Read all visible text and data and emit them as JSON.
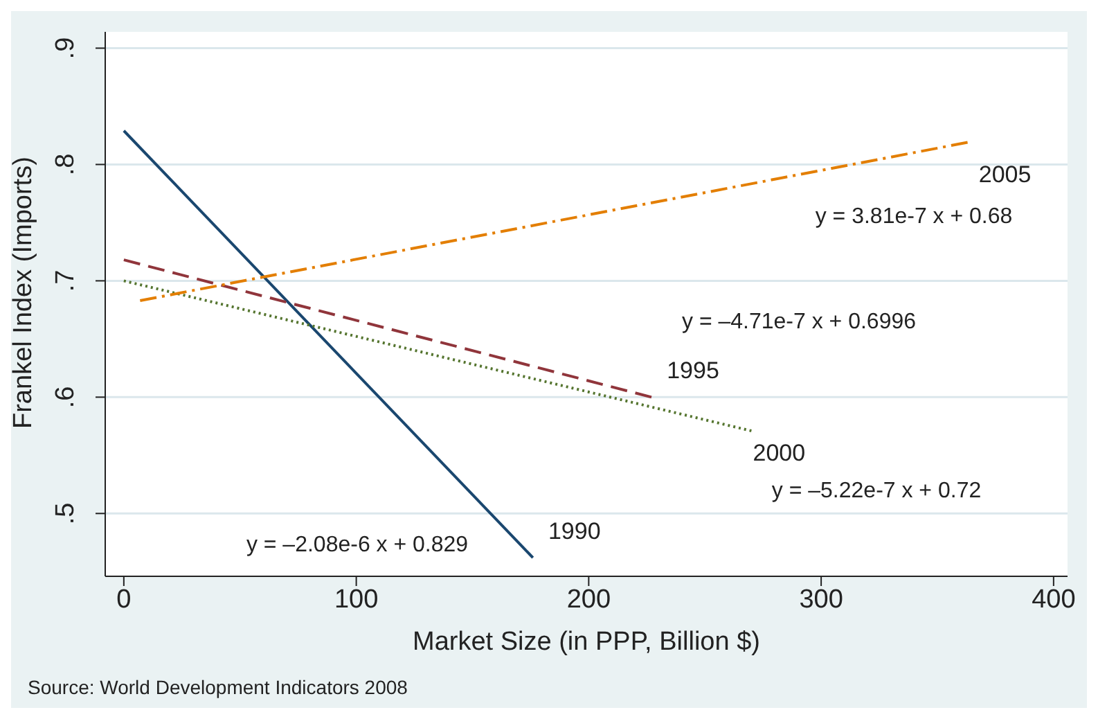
{
  "chart_data": {
    "type": "line",
    "xlabel": "Market Size (in PPP, Billion $)",
    "ylabel": "Frankel Index (Imports)",
    "xlim": [
      -8,
      406
    ],
    "xticks": [
      0,
      100,
      200,
      300,
      400
    ],
    "ylim": [
      0.446,
      0.914
    ],
    "yticks": [
      {
        "value": 0.5,
        "label": ".5"
      },
      {
        "value": 0.6,
        "label": ".6"
      },
      {
        "value": 0.7,
        "label": ".7"
      },
      {
        "value": 0.8,
        "label": ".8"
      },
      {
        "value": 0.9,
        "label": ".9"
      }
    ],
    "grid": "y",
    "legend": false,
    "marker": "none",
    "series": [
      {
        "name": "1990",
        "color": "#1a476f",
        "line_style": "solid",
        "x": [
          0,
          176
        ],
        "values": [
          0.829,
          0.462
        ]
      },
      {
        "name": "1995",
        "color": "#90353b",
        "line_style": "dashed",
        "x": [
          0,
          227
        ],
        "values": [
          0.718,
          0.6
        ]
      },
      {
        "name": "2000",
        "color": "#55752f",
        "line_style": "dotted",
        "x": [
          0,
          270
        ],
        "values": [
          0.7,
          0.571
        ]
      },
      {
        "name": "2005",
        "color": "#e37e00",
        "line_style": "dashdot",
        "x": [
          7,
          363
        ],
        "values": [
          0.683,
          0.819
        ]
      }
    ],
    "annotations": [
      "y = –2.08e-6 x + 0.829",
      "y = –4.71e-7 x + 0.6996",
      "y = –5.22e-7 x + 0.72",
      "y = 3.81e-7 x + 0.68",
      "Source: World Development Indicators 2008"
    ]
  }
}
